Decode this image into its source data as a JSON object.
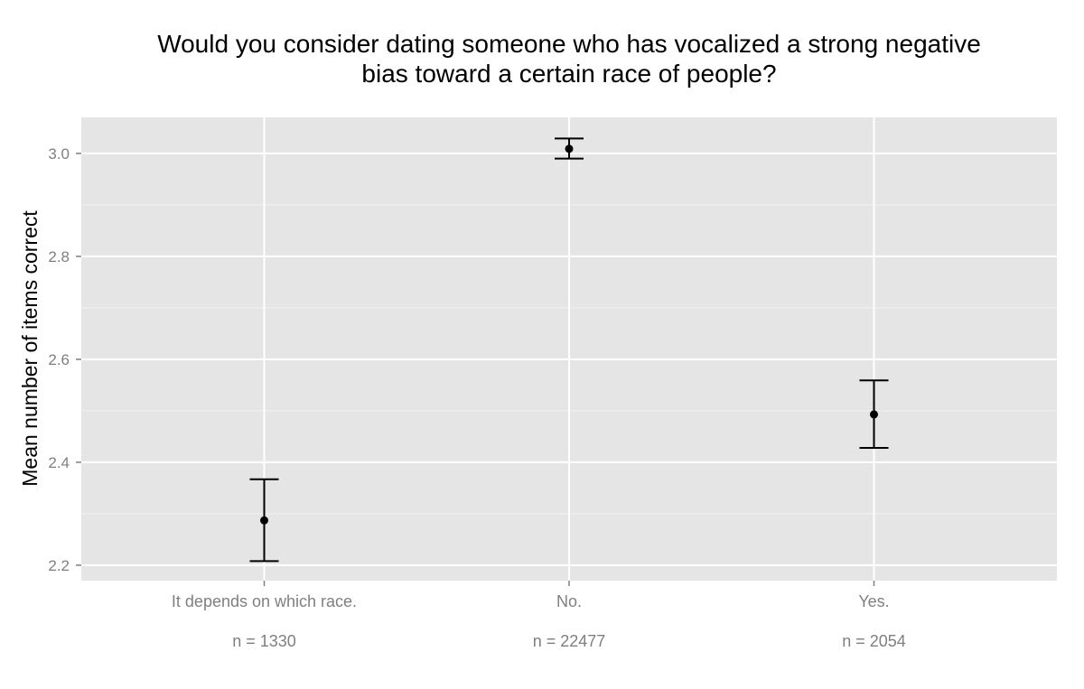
{
  "chart_data": {
    "type": "scatter",
    "title_lines": [
      "Would you consider dating someone who has vocalized a strong negative",
      "bias toward a certain race of people?"
    ],
    "xlabel": "",
    "ylabel": "Mean number of items correct",
    "categories": [
      "It depends on which race.",
      "No.",
      "Yes."
    ],
    "sample_sizes": [
      "n = 1330",
      "n = 22477",
      "n = 2054"
    ],
    "means": [
      2.287,
      3.009,
      2.493
    ],
    "ci_lower": [
      2.208,
      2.99,
      2.428
    ],
    "ci_upper": [
      2.367,
      3.029,
      2.559
    ],
    "yticks": [
      2.2,
      2.4,
      2.6,
      2.8,
      3.0
    ],
    "ytick_labels": [
      "2.2",
      "2.4",
      "2.6",
      "2.8",
      "3.0"
    ],
    "ylim": [
      2.17,
      3.07
    ],
    "grid": true,
    "colors": {
      "panel_background": "#e5e5e5",
      "grid_major": "#ffffff",
      "grid_minor": "#f2f2f2",
      "marks": "#000000",
      "tick_text": "#7f7f7f"
    }
  }
}
